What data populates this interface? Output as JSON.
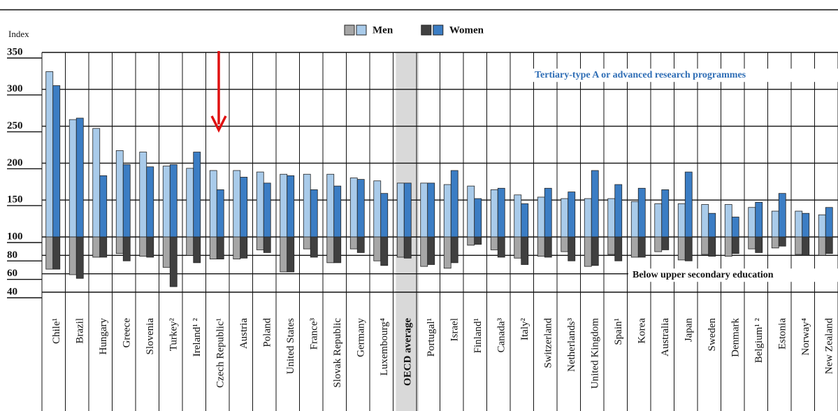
{
  "chart_data": {
    "type": "bar",
    "y_label": "Index",
    "ylim": [
      40,
      350
    ],
    "yticks": [
      40,
      60,
      80,
      100,
      150,
      200,
      250,
      300,
      350
    ],
    "baseline": 100,
    "grid": true,
    "legend": [
      {
        "name": "Men",
        "colors": [
          "#a6a6a6",
          "#a9cbea"
        ]
      },
      {
        "name": "Women",
        "colors": [
          "#404040",
          "#3b7dc4"
        ]
      }
    ],
    "highlight": "OECD average",
    "categories": [
      "Chile¹",
      "Brazil",
      "Hungary",
      "Greece",
      "Slovenia",
      "Turkey²",
      "Ireland¹ ²",
      "Czech Republic¹",
      "Austria",
      "Poland",
      "United States",
      "France³",
      "Slovak Republic",
      "Germany",
      "Luxembourg⁴",
      "OECD average",
      "Portugal¹",
      "Israel",
      "Finland¹",
      "Canada³",
      "Italy²",
      "Switzerland",
      "Netherlands³",
      "United Kingdom",
      "Spain¹",
      "Korea",
      "Australia",
      "Japan",
      "Sweden",
      "Denmark",
      "Belgium¹ ²",
      "Estonia",
      "Norway⁴",
      "New Zealand"
    ],
    "groups": [
      {
        "label": "Tertiary-type A or advanced research programmes",
        "series": [
          {
            "color": "#a9cbea",
            "values": [
              324,
              259,
              247,
              217,
              215,
              196,
              193,
              190,
              190,
              188,
              185,
              185,
              185,
              180,
              176,
              173,
              173,
              171,
              169,
              164,
              157,
              154,
              152,
              152,
              152,
              148,
              145,
              145,
              144,
              144,
              140,
              135,
              135,
              130
            ]
          },
          {
            "color": "#3b7dc4",
            "values": [
              305,
              261,
              183,
              198,
              195,
              198,
              215,
              164,
              181,
              173,
              183,
              164,
              169,
              178,
              159,
              173,
              173,
              190,
              152,
              166,
              145,
              166,
              161,
              190,
              171,
              166,
              164,
              188,
              132,
              127,
              147,
              159,
              132,
              140
            ]
          }
        ]
      },
      {
        "label": "Below upper secondary education",
        "series": [
          {
            "color": "#a6a6a6",
            "values": [
              65,
              59,
              78,
              82,
              79,
              67,
              80,
              76,
              76,
              86,
              62,
              87,
              72,
              87,
              74,
              78,
              68,
              66,
              91,
              86,
              77,
              79,
              84,
              68,
              81,
              78,
              84,
              75,
              81,
              79,
              87,
              88,
              81,
              80
            ]
          },
          {
            "color": "#404040",
            "values": [
              65,
              55,
              78,
              74,
              78,
              46,
              72,
              76,
              77,
              83,
              62,
              78,
              72,
              83,
              69,
              77,
              70,
              72,
              92,
              78,
              70,
              78,
              74,
              69,
              74,
              78,
              86,
              74,
              79,
              82,
              83,
              90,
              80,
              82
            ]
          }
        ]
      }
    ]
  }
}
